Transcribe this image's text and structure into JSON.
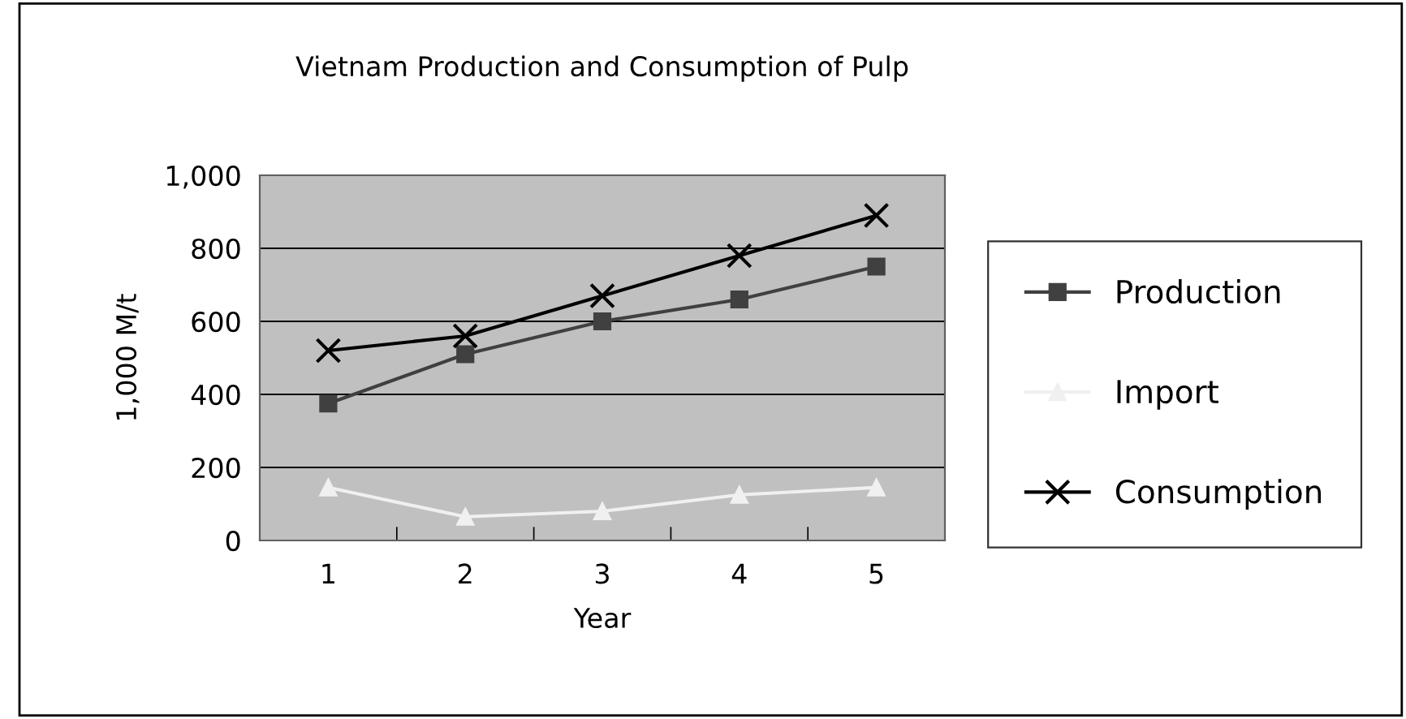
{
  "chart_data": {
    "type": "line",
    "title": "Vietnam Production and Consumption of Pulp",
    "xlabel": "Year",
    "ylabel": "1,000 M/t",
    "categories": [
      "1",
      "2",
      "3",
      "4",
      "5"
    ],
    "series": [
      {
        "name": "Production",
        "color": "#404040",
        "marker": "square",
        "values": [
          375,
          510,
          600,
          660,
          750
        ]
      },
      {
        "name": "Import",
        "color": "#f0f0f0",
        "marker": "triangle",
        "values": [
          145,
          65,
          80,
          125,
          145
        ]
      },
      {
        "name": "Consumption",
        "color": "#000000",
        "marker": "cross",
        "values": [
          520,
          560,
          670,
          780,
          890
        ]
      }
    ],
    "ylim": [
      0,
      1000
    ],
    "yticks": [
      0,
      {
        "value": 200,
        "label": "200"
      },
      {
        "value": 400,
        "label": "400"
      },
      {
        "value": 600,
        "label": "600"
      },
      {
        "value": 800,
        "label": "800"
      },
      {
        "value": 1000,
        "label": "1,000"
      }
    ],
    "grid": "y",
    "legend": "right",
    "line_style": "solid"
  }
}
